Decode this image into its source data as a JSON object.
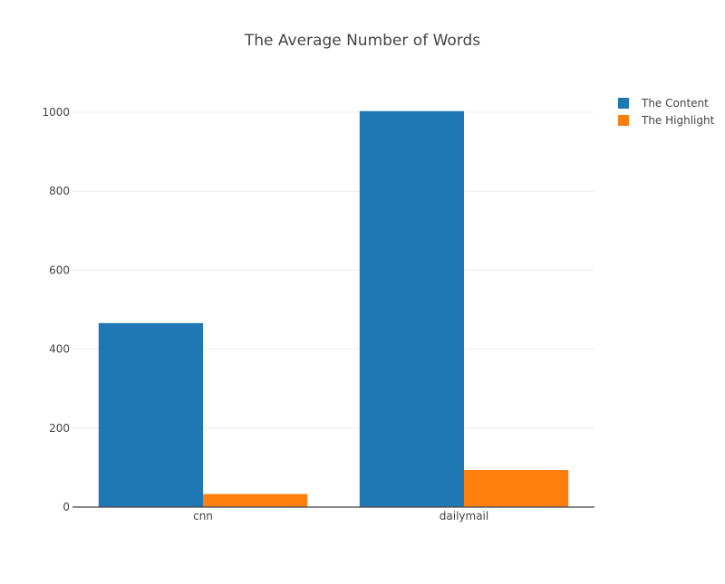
{
  "chart_data": {
    "type": "bar",
    "title": "The Average Number of Words",
    "categories": [
      "cnn",
      "dailymail"
    ],
    "series": [
      {
        "name": "The Content",
        "values": [
          466,
          1003
        ]
      },
      {
        "name": "The Highlight",
        "values": [
          33,
          94
        ]
      }
    ],
    "ylim": [
      0,
      1000
    ],
    "yticks": [
      0,
      200,
      400,
      600,
      800,
      1000
    ],
    "xlabel": "",
    "ylabel": "",
    "grid": true,
    "legend": "top-right",
    "colors": {
      "The Content": "#1f77b4",
      "The Highlight": "#ff7f0e"
    }
  }
}
